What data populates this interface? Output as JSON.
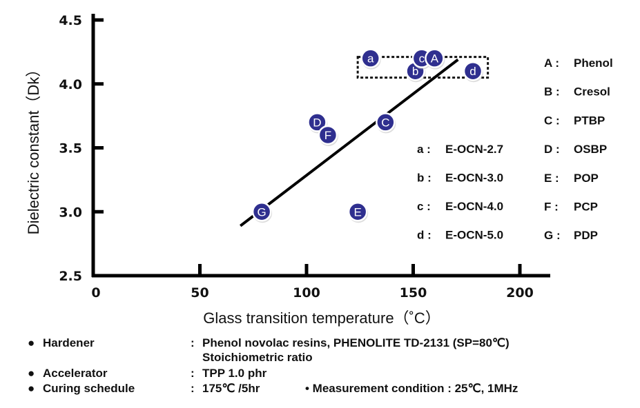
{
  "chart_data": {
    "type": "scatter",
    "title": "",
    "xlabel": "Glass transition temperature（˚C）",
    "ylabel": "Dielectric constant（Dk）",
    "xlim": [
      0,
      213
    ],
    "ylim": [
      2.5,
      4.6
    ],
    "xticks": [
      0,
      50,
      100,
      150,
      200
    ],
    "xtick_labels": [
      "0",
      "50",
      "100",
      "150",
      "200"
    ],
    "yticks": [
      2.5,
      3.0,
      3.5,
      4.0,
      4.5
    ],
    "ytick_labels": [
      "2.5",
      "3.0",
      "3.5",
      "4.0",
      "4.5"
    ],
    "grid": false,
    "marker_color": "#2f2f8f",
    "points": [
      {
        "label": "G",
        "x": 79,
        "y": 3.0
      },
      {
        "label": "E",
        "x": 124,
        "y": 3.0
      },
      {
        "label": "D",
        "x": 105,
        "y": 3.7
      },
      {
        "label": "F",
        "x": 110,
        "y": 3.6
      },
      {
        "label": "C",
        "x": 137,
        "y": 3.7
      },
      {
        "label": "a",
        "x": 130,
        "y": 4.2
      },
      {
        "label": "b",
        "x": 151,
        "y": 4.1
      },
      {
        "label": "c",
        "x": 154,
        "y": 4.2
      },
      {
        "label": "A",
        "x": 160,
        "y": 4.2
      },
      {
        "label": "d",
        "x": 178,
        "y": 4.1
      }
    ],
    "trend_line": {
      "x": [
        69,
        171
      ],
      "y": [
        2.89,
        4.19
      ]
    },
    "highlight_box": {
      "x": [
        124,
        185
      ],
      "y": [
        4.06,
        4.2
      ]
    },
    "legend_letters": [
      {
        "key": "A",
        "name": "Phenol"
      },
      {
        "key": "B",
        "name": "Cresol"
      },
      {
        "key": "C",
        "name": "PTBP"
      },
      {
        "key": "D",
        "name": "OSBP"
      },
      {
        "key": "E",
        "name": "POP"
      },
      {
        "key": "F",
        "name": "PCP"
      },
      {
        "key": "G",
        "name": "PDP"
      }
    ],
    "legend_lower": [
      {
        "key": "a",
        "name": "E-OCN-2.7"
      },
      {
        "key": "b",
        "name": "E-OCN-3.0"
      },
      {
        "key": "c",
        "name": "E-OCN-4.0"
      },
      {
        "key": "d",
        "name": "E-OCN-5.0"
      }
    ],
    "legend_placement": "right"
  },
  "notes": {
    "bullet": "●",
    "colon": ":",
    "hardener_label": "Hardener",
    "hardener_value": "Phenol novolac resins, PHENOLITE TD-2131 (SP=80℃)",
    "hardener_value2": "Stoichiometric ratio",
    "accelerator_label": "Accelerator",
    "accelerator_value": "TPP  1.0 phr",
    "curing_label": "Curing schedule",
    "curing_value": "175℃ /5hr",
    "measurement": "• Measurement condition : 25℃, 1MHz"
  }
}
